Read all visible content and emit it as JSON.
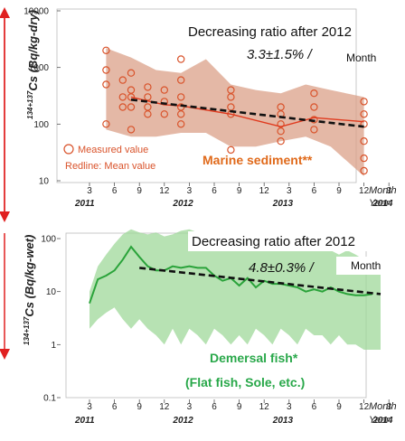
{
  "chart_data": [
    {
      "type": "scatter",
      "ylabel": "134+137Cs (Bq/kg-dry)",
      "ylabel_sup": "134+137",
      "ylabel_main": "Cs (Bq/kg-dry)",
      "y_scale": "log",
      "ylim": [
        10,
        10000
      ],
      "y_ticks": [
        "10000",
        "1000",
        "100",
        "10"
      ],
      "x_unit": "Month",
      "x_year_unit": "Year",
      "x_month_ticks": [
        "3",
        "6",
        "9",
        "12",
        "3",
        "6",
        "9",
        "12",
        "3",
        "6",
        "9",
        "12",
        "3"
      ],
      "x_year_ticks": [
        "2011",
        "2012",
        "2013",
        "2014"
      ],
      "title": "Decreasing ratio after 2012",
      "rate": "3.3±1.5% /",
      "rate_unit": "Month",
      "series_label": "Marine sediment**",
      "legend": [
        "Measured value",
        "Redline: Mean value"
      ],
      "range_band": {
        "x": [
          5,
          8,
          11,
          14,
          17,
          20,
          23,
          26,
          29,
          32,
          36
        ],
        "upper": [
          2200,
          1500,
          900,
          800,
          1400,
          500,
          400,
          350,
          500,
          400,
          300
        ],
        "lower": [
          80,
          60,
          60,
          70,
          70,
          40,
          40,
          50,
          60,
          40,
          12
        ]
      },
      "measured": [
        {
          "x": 5,
          "values": [
            2000,
            900,
            500,
            100
          ]
        },
        {
          "x": 7,
          "values": [
            600,
            300,
            200
          ]
        },
        {
          "x": 8,
          "values": [
            800,
            400,
            300,
            200,
            80
          ]
        },
        {
          "x": 10,
          "values": [
            450,
            300,
            200,
            150
          ]
        },
        {
          "x": 12,
          "values": [
            400,
            250,
            150
          ]
        },
        {
          "x": 14,
          "values": [
            1400,
            600,
            300,
            200,
            150,
            100
          ]
        },
        {
          "x": 20,
          "values": [
            400,
            300,
            200,
            150,
            35
          ]
        },
        {
          "x": 26,
          "values": [
            200,
            150,
            100,
            75,
            50
          ]
        },
        {
          "x": 30,
          "values": [
            350,
            200,
            120,
            80
          ]
        },
        {
          "x": 36,
          "values": [
            250,
            150,
            100,
            50,
            25,
            15
          ]
        }
      ],
      "mean_line": {
        "x": [
          8,
          12,
          14,
          20,
          26,
          30,
          36
        ],
        "y": [
          300,
          220,
          210,
          150,
          90,
          130,
          110
        ]
      },
      "trend_line": {
        "x": [
          8,
          36
        ],
        "y": [
          270,
          90
        ]
      }
    },
    {
      "type": "area",
      "ylabel": "134+137Cs (Bq/kg-wet)",
      "ylabel_sup": "134+137",
      "ylabel_main": "Cs (Bq/kg-wet)",
      "y_scale": "log",
      "ylim": [
        0.1,
        100
      ],
      "y_ticks": [
        "100",
        "10",
        "1",
        "0.1"
      ],
      "x_unit": "Month",
      "x_year_unit": "Year",
      "x_month_ticks": [
        "3",
        "6",
        "9",
        "12",
        "3",
        "6",
        "9",
        "12",
        "3",
        "6",
        "9",
        "12",
        "3"
      ],
      "x_year_ticks": [
        "2011",
        "2012",
        "2013",
        "2014"
      ],
      "title": "Decreasing ratio after 2012",
      "rate": "4.8±0.3% /",
      "rate_unit": "Month",
      "series_label": "Demersal fish*",
      "series_sublabel": "(Flat fish, Sole, etc.)",
      "range_band": {
        "x": [
          3,
          4,
          5,
          6,
          7,
          8,
          9,
          10,
          11,
          12,
          13,
          14,
          15,
          16,
          17,
          18,
          19,
          20,
          21,
          22,
          23,
          24,
          25,
          26,
          27,
          28,
          29,
          30,
          31,
          32,
          33,
          34,
          35,
          36,
          37,
          38
        ],
        "upper": [
          10,
          30,
          50,
          80,
          120,
          150,
          130,
          120,
          130,
          110,
          120,
          140,
          150,
          130,
          120,
          110,
          100,
          110,
          90,
          100,
          120,
          100,
          90,
          100,
          90,
          80,
          70,
          80,
          70,
          60,
          50,
          60,
          50,
          40,
          45,
          40
        ],
        "lower": [
          2,
          3,
          4,
          5,
          3,
          2,
          3,
          2,
          1.5,
          1,
          2,
          1,
          2,
          1.5,
          1,
          2,
          1.5,
          1,
          1.5,
          1,
          2,
          1.5,
          1,
          2,
          1.5,
          1,
          2,
          1.5,
          1.5,
          1,
          1.5,
          1,
          1,
          0.8,
          0.8,
          0.8
        ]
      },
      "mean_line": {
        "x": [
          3,
          4,
          5,
          6,
          7,
          8,
          9,
          10,
          11,
          12,
          13,
          14,
          15,
          16,
          17,
          18,
          19,
          20,
          21,
          22,
          23,
          24,
          25,
          26,
          27,
          28,
          29,
          30,
          31,
          32,
          33,
          34,
          35,
          36,
          37
        ],
        "y": [
          6,
          17,
          20,
          25,
          40,
          70,
          45,
          30,
          25,
          25,
          30,
          28,
          30,
          28,
          28,
          20,
          16,
          18,
          13,
          18,
          12,
          16,
          14,
          14,
          13,
          12,
          10,
          11,
          10,
          12,
          10,
          9,
          8.5,
          8.5,
          9
        ]
      },
      "trend_line": {
        "x": [
          9,
          38
        ],
        "y": [
          28,
          9
        ]
      }
    }
  ]
}
